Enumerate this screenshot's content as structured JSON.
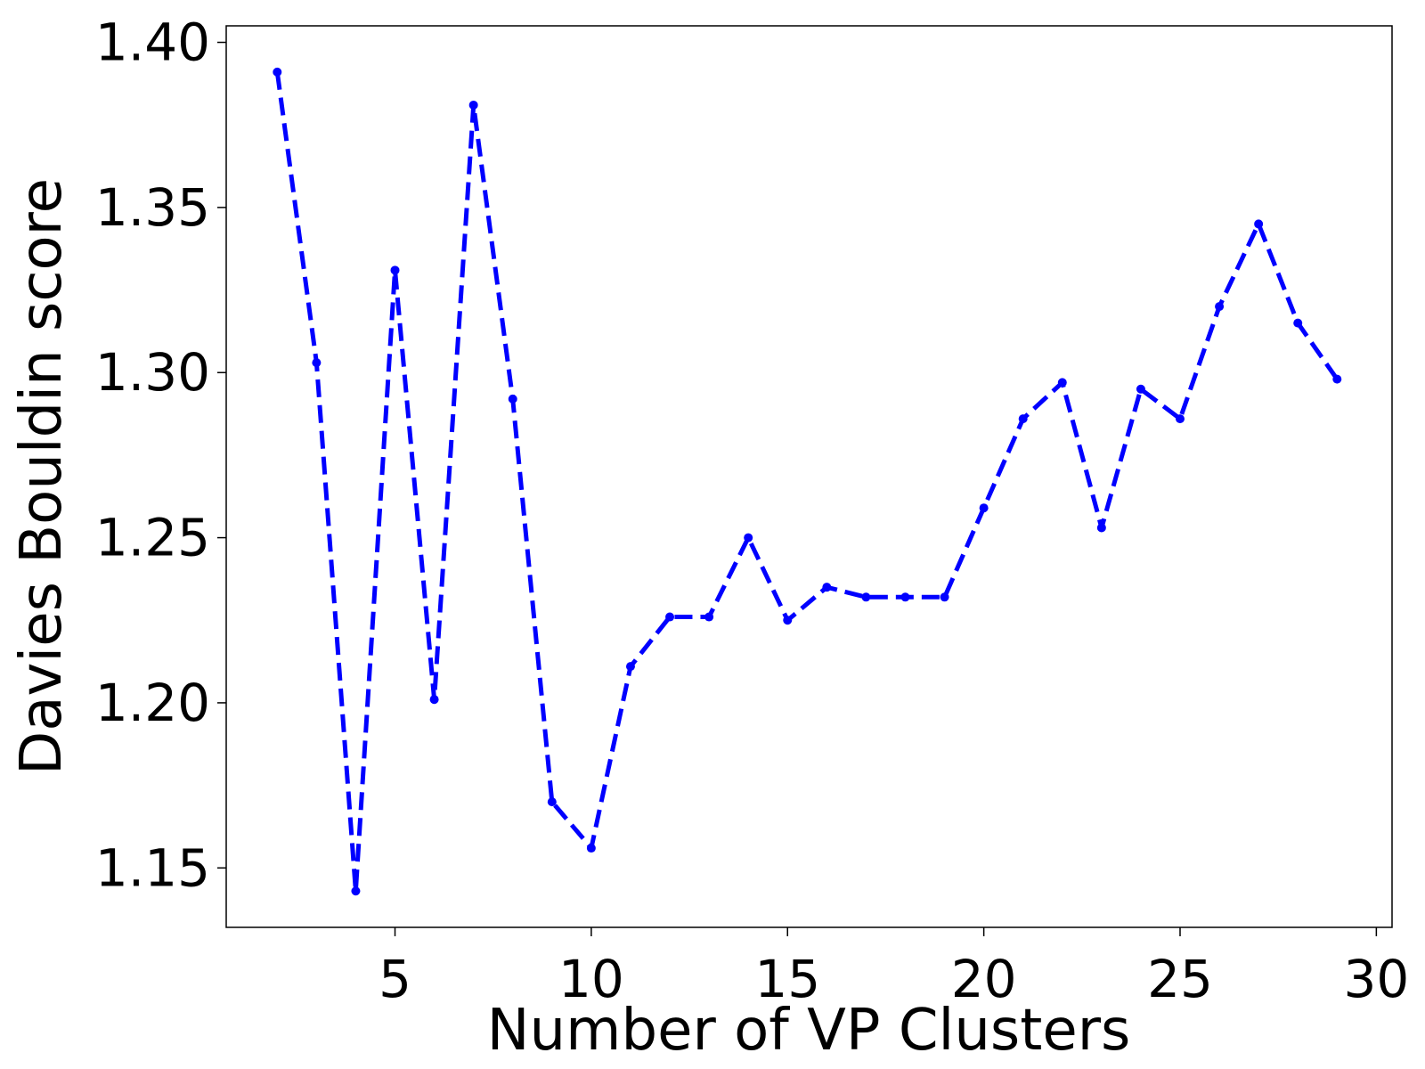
{
  "chart_data": {
    "type": "line",
    "title": "",
    "xlabel": "Number of VP Clusters",
    "ylabel": "Davies Bouldin score",
    "x": [
      2,
      3,
      4,
      5,
      6,
      7,
      8,
      9,
      10,
      11,
      12,
      13,
      14,
      15,
      16,
      17,
      18,
      19,
      20,
      21,
      22,
      23,
      24,
      25,
      26,
      27,
      28,
      29
    ],
    "series": [
      {
        "color": "#0000ff",
        "line_style": "dashed",
        "marker": "circle",
        "values": [
          1.391,
          1.303,
          1.143,
          1.331,
          1.201,
          1.381,
          1.292,
          1.17,
          1.156,
          1.211,
          1.226,
          1.226,
          1.25,
          1.225,
          1.235,
          1.232,
          1.232,
          1.232,
          1.259,
          1.286,
          1.297,
          1.253,
          1.295,
          1.286,
          1.32,
          1.345,
          1.315,
          1.298
        ]
      }
    ],
    "xlim": [
      0.7,
      30.4
    ],
    "ylim": [
      1.132,
      1.405
    ],
    "xticks": [
      5,
      10,
      15,
      20,
      25,
      30
    ],
    "yticks": [
      1.15,
      1.2,
      1.25,
      1.3,
      1.35,
      1.4
    ],
    "xtick_labels": [
      "5",
      "10",
      "15",
      "20",
      "25",
      "30"
    ],
    "ytick_labels": [
      "1.15",
      "1.20",
      "1.25",
      "1.30",
      "1.35",
      "1.40"
    ],
    "grid": false,
    "legend": "none"
  }
}
